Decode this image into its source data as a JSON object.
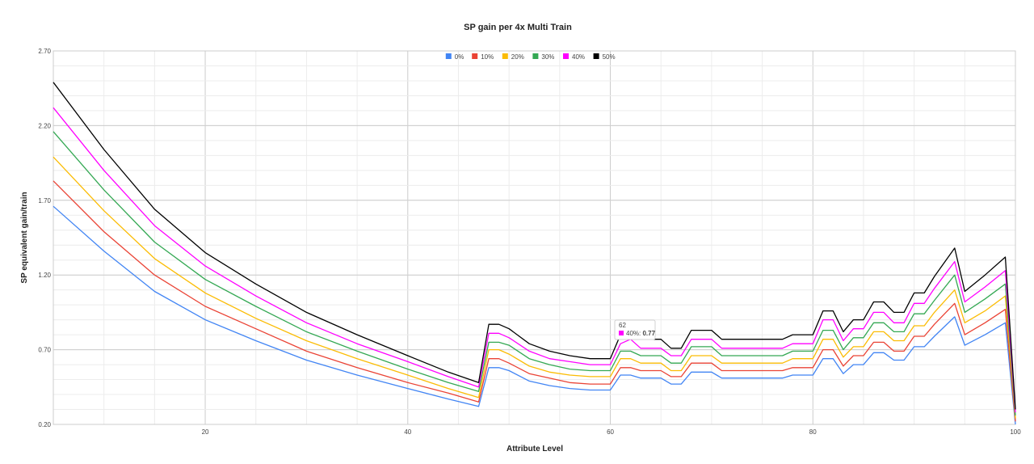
{
  "chart_data": {
    "type": "line",
    "title": "SP gain per 4x Multi Train",
    "xlabel": "Attribute Level",
    "ylabel": "SP equivalent gain/train",
    "xlim": [
      5,
      100
    ],
    "ylim": [
      0.2,
      2.7
    ],
    "x_ticks": [
      20,
      40,
      60,
      80,
      100
    ],
    "y_ticks": [
      0.2,
      0.7,
      1.2,
      1.7,
      2.2,
      2.7
    ],
    "y_tick_labels": [
      "0.20",
      "0.70",
      "1.20",
      "1.70",
      "2.20",
      "2.70"
    ],
    "grid": true,
    "legend_position": "top",
    "x": [
      5,
      10,
      15,
      20,
      25,
      30,
      35,
      40,
      44,
      47,
      48,
      49,
      50,
      52,
      54,
      56,
      58,
      59,
      60,
      61,
      62,
      63,
      65,
      66,
      67,
      68,
      70,
      71,
      74,
      77,
      78,
      80,
      81,
      82,
      83,
      84,
      85,
      86,
      87,
      88,
      89,
      90,
      91,
      92,
      94,
      95,
      97,
      99,
      100
    ],
    "series": [
      {
        "name": "0%",
        "color": "#4285f4",
        "values": [
          1.66,
          1.36,
          1.09,
          0.9,
          0.76,
          0.63,
          0.53,
          0.44,
          0.37,
          0.32,
          0.58,
          0.58,
          0.56,
          0.49,
          0.46,
          0.44,
          0.43,
          0.43,
          0.43,
          0.53,
          0.53,
          0.51,
          0.51,
          0.47,
          0.47,
          0.55,
          0.55,
          0.51,
          0.51,
          0.51,
          0.53,
          0.53,
          0.64,
          0.64,
          0.54,
          0.6,
          0.6,
          0.68,
          0.68,
          0.63,
          0.63,
          0.72,
          0.72,
          0.79,
          0.92,
          0.73,
          0.8,
          0.88,
          0.2
        ]
      },
      {
        "name": "10%",
        "color": "#ea4335",
        "values": [
          1.83,
          1.49,
          1.2,
          0.99,
          0.84,
          0.69,
          0.58,
          0.48,
          0.41,
          0.35,
          0.64,
          0.64,
          0.61,
          0.54,
          0.51,
          0.48,
          0.47,
          0.47,
          0.47,
          0.58,
          0.58,
          0.56,
          0.56,
          0.52,
          0.52,
          0.61,
          0.61,
          0.56,
          0.56,
          0.56,
          0.58,
          0.58,
          0.7,
          0.7,
          0.59,
          0.66,
          0.66,
          0.75,
          0.75,
          0.69,
          0.69,
          0.79,
          0.79,
          0.87,
          1.01,
          0.8,
          0.88,
          0.97,
          0.22
        ]
      },
      {
        "name": "20%",
        "color": "#fbbc04",
        "values": [
          1.99,
          1.63,
          1.31,
          1.08,
          0.91,
          0.76,
          0.64,
          0.53,
          0.44,
          0.38,
          0.7,
          0.7,
          0.67,
          0.59,
          0.55,
          0.53,
          0.52,
          0.52,
          0.52,
          0.64,
          0.64,
          0.61,
          0.61,
          0.56,
          0.56,
          0.66,
          0.66,
          0.61,
          0.61,
          0.61,
          0.64,
          0.64,
          0.77,
          0.77,
          0.65,
          0.72,
          0.72,
          0.82,
          0.82,
          0.76,
          0.76,
          0.86,
          0.86,
          0.95,
          1.1,
          0.88,
          0.96,
          1.06,
          0.24
        ]
      },
      {
        "name": "30%",
        "color": "#34a853",
        "values": [
          2.16,
          1.77,
          1.42,
          1.17,
          0.99,
          0.82,
          0.69,
          0.57,
          0.48,
          0.42,
          0.75,
          0.75,
          0.73,
          0.64,
          0.6,
          0.57,
          0.56,
          0.56,
          0.56,
          0.69,
          0.69,
          0.66,
          0.66,
          0.61,
          0.61,
          0.72,
          0.72,
          0.66,
          0.66,
          0.66,
          0.69,
          0.69,
          0.83,
          0.83,
          0.7,
          0.78,
          0.78,
          0.88,
          0.88,
          0.82,
          0.82,
          0.94,
          0.94,
          1.03,
          1.2,
          0.95,
          1.04,
          1.14,
          0.26
        ]
      },
      {
        "name": "40%",
        "color": "#ff00ff",
        "values": [
          2.32,
          1.9,
          1.53,
          1.26,
          1.06,
          0.88,
          0.74,
          0.62,
          0.52,
          0.45,
          0.81,
          0.81,
          0.78,
          0.69,
          0.64,
          0.62,
          0.6,
          0.6,
          0.6,
          0.74,
          0.77,
          0.71,
          0.71,
          0.66,
          0.66,
          0.77,
          0.77,
          0.71,
          0.71,
          0.71,
          0.74,
          0.74,
          0.9,
          0.9,
          0.76,
          0.84,
          0.84,
          0.95,
          0.95,
          0.88,
          0.88,
          1.01,
          1.01,
          1.11,
          1.29,
          1.02,
          1.12,
          1.23,
          0.28
        ]
      },
      {
        "name": "50%",
        "color": "#000000",
        "values": [
          2.49,
          2.04,
          1.64,
          1.35,
          1.14,
          0.95,
          0.8,
          0.66,
          0.55,
          0.48,
          0.87,
          0.87,
          0.84,
          0.74,
          0.69,
          0.66,
          0.64,
          0.64,
          0.64,
          0.8,
          0.8,
          0.77,
          0.77,
          0.71,
          0.71,
          0.83,
          0.83,
          0.77,
          0.77,
          0.77,
          0.8,
          0.8,
          0.96,
          0.96,
          0.82,
          0.9,
          0.9,
          1.02,
          1.02,
          0.95,
          0.95,
          1.08,
          1.08,
          1.19,
          1.38,
          1.09,
          1.2,
          1.32,
          0.3
        ]
      }
    ],
    "tooltip": {
      "x_label": "62",
      "series": "40%",
      "value": "0.77"
    }
  }
}
